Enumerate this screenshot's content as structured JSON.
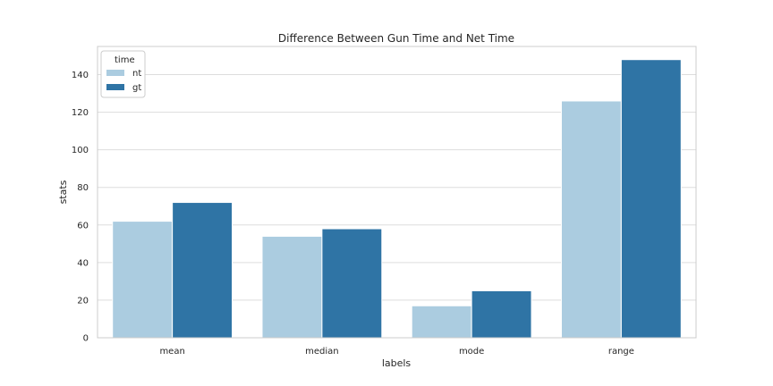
{
  "chart_data": {
    "type": "bar",
    "title": "Difference Between Gun Time and Net Time",
    "xlabel": "labels",
    "ylabel": "stats",
    "categories": [
      "mean",
      "median",
      "mode",
      "range"
    ],
    "series": [
      {
        "name": "nt",
        "color": "#abcce0",
        "values": [
          62,
          54,
          17,
          126
        ]
      },
      {
        "name": "gt",
        "color": "#2f74a5",
        "values": [
          72,
          58,
          25,
          148
        ]
      }
    ],
    "ylim": [
      0,
      155
    ],
    "yticks": [
      0,
      20,
      40,
      60,
      80,
      100,
      120,
      140
    ],
    "grid": true,
    "legend": {
      "title": "time",
      "position": "top-left"
    }
  }
}
